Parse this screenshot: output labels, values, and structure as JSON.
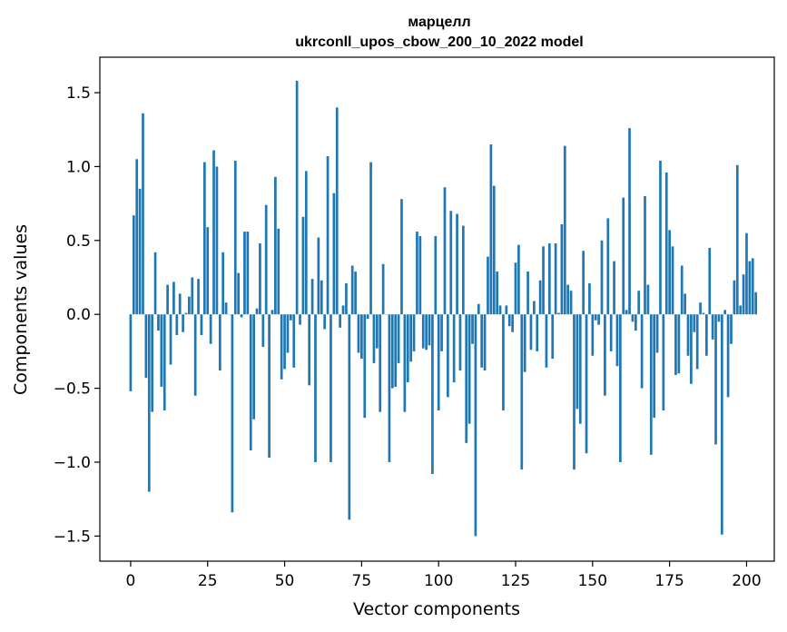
{
  "chart_data": {
    "type": "bar",
    "title": "марцелл",
    "subtitle": "ukrconll_upos_cbow_200_10_2022 model",
    "xlabel": "Vector components",
    "ylabel": "Components values",
    "xlim": [
      -10,
      209
    ],
    "ylim": [
      -1.67,
      1.74
    ],
    "xticks": [
      0,
      25,
      50,
      75,
      100,
      125,
      150,
      175,
      200
    ],
    "yticks": [
      1.5,
      1.0,
      0.5,
      0.0,
      -0.5,
      -1.0,
      -1.5
    ],
    "ytick_labels": [
      "1.5",
      "1.0",
      "0.5",
      "0.0",
      "−0.5",
      "−1.0",
      "−1.5"
    ],
    "bar_color": "#1f77b4",
    "grid": false,
    "values": [
      -0.52,
      0.67,
      1.05,
      0.85,
      1.36,
      -0.43,
      -1.2,
      -0.66,
      0.42,
      -0.11,
      -0.49,
      -0.65,
      0.2,
      -0.34,
      0.22,
      -0.14,
      0.14,
      -0.12,
      0.01,
      0.12,
      0.25,
      -0.55,
      0.24,
      -0.14,
      1.03,
      0.59,
      -0.2,
      1.11,
      1.0,
      -0.38,
      0.42,
      0.08,
      0.0,
      -1.34,
      1.04,
      0.28,
      -0.02,
      0.56,
      0.56,
      -0.92,
      -0.71,
      0.04,
      0.48,
      -0.22,
      0.74,
      -0.97,
      0.03,
      0.93,
      0.58,
      -0.44,
      -0.37,
      -0.26,
      -0.04,
      -0.36,
      1.58,
      -0.07,
      0.66,
      0.97,
      -0.48,
      0.24,
      -1.0,
      0.52,
      0.23,
      -0.1,
      1.07,
      -1.0,
      0.82,
      1.4,
      -0.09,
      0.06,
      0.21,
      -1.39,
      0.33,
      0.29,
      -0.26,
      -0.3,
      -0.7,
      -0.03,
      1.03,
      -0.33,
      -0.23,
      -0.66,
      0.34,
      0.0,
      -1.0,
      -0.5,
      -0.49,
      -0.33,
      0.78,
      -0.66,
      -0.46,
      -0.32,
      -0.25,
      0.56,
      0.53,
      -0.23,
      -0.24,
      -0.21,
      -1.08,
      0.53,
      -0.65,
      -0.25,
      0.86,
      -0.56,
      0.7,
      -0.46,
      0.68,
      -0.38,
      0.6,
      -0.87,
      -0.74,
      -0.2,
      -1.5,
      0.07,
      -0.36,
      -0.38,
      0.39,
      1.15,
      0.87,
      0.29,
      0.06,
      -0.65,
      0.06,
      -0.08,
      -0.12,
      0.35,
      0.47,
      -1.05,
      -0.39,
      0.29,
      -0.24,
      0.09,
      -0.25,
      0.23,
      0.46,
      -0.36,
      0.48,
      -0.3,
      0.48,
      0.01,
      0.61,
      1.14,
      0.2,
      0.16,
      -1.05,
      -0.64,
      -0.74,
      0.43,
      -0.94,
      0.21,
      -0.28,
      -0.04,
      -0.07,
      0.5,
      -0.55,
      0.65,
      -0.25,
      0.36,
      -0.35,
      -1.0,
      0.79,
      0.03,
      1.26,
      -0.05,
      -0.11,
      0.16,
      -0.5,
      0.8,
      0.2,
      -0.95,
      -0.7,
      -0.26,
      1.04,
      -0.65,
      0.96,
      0.57,
      0.46,
      -0.41,
      -0.4,
      0.33,
      0.14,
      -0.28,
      -0.47,
      -0.12,
      -0.37,
      0.08,
      0.01,
      -0.28,
      0.45,
      -0.17,
      -0.88,
      -0.05,
      -1.49,
      0.03,
      -0.56,
      -0.2,
      0.23,
      1.01,
      0.06,
      0.27,
      0.55,
      0.36,
      0.38,
      0.15
    ]
  }
}
